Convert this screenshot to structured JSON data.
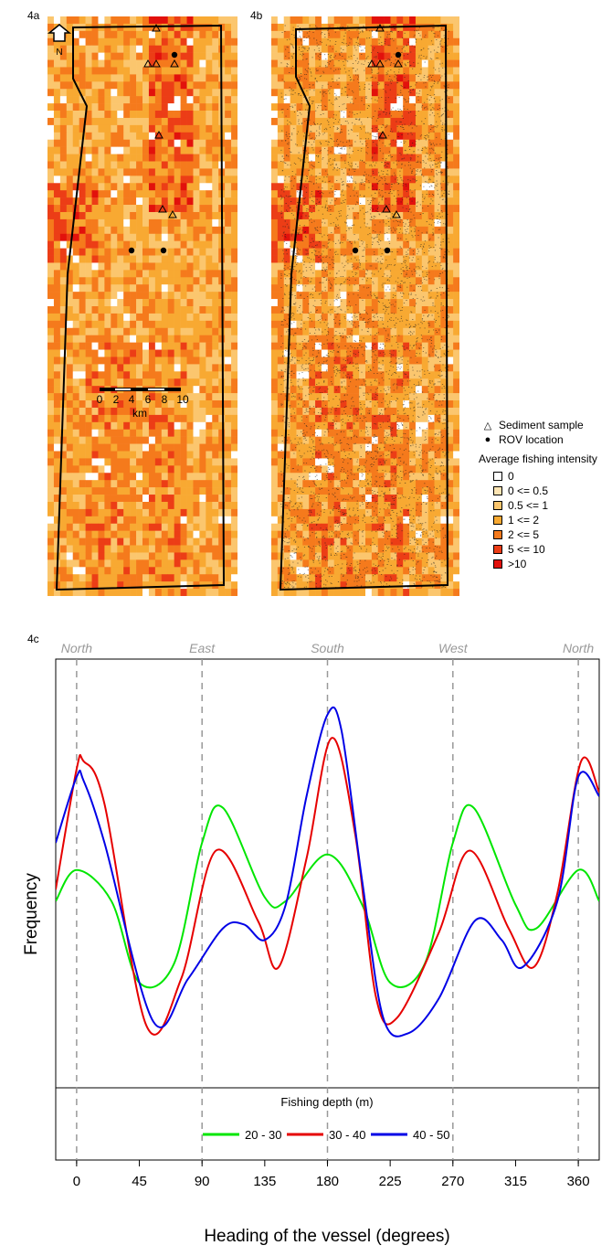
{
  "panels": {
    "a": {
      "label": "4a"
    },
    "b": {
      "label": "4b"
    },
    "c": {
      "label": "4c"
    }
  },
  "map": {
    "north_label": "N",
    "scale_ticks": [
      "0",
      "2",
      "4",
      "6",
      "8",
      "10"
    ],
    "scale_unit": "km",
    "colors": [
      "#ffffff",
      "#fde4b3",
      "#fbc66e",
      "#f8a932",
      "#f57a1c",
      "#ec3d16",
      "#e2110c"
    ]
  },
  "legend": {
    "sediment_label": "Sediment sample",
    "rov_label": "ROV location",
    "title": "Average fishing intensity",
    "classes": [
      {
        "label": "0",
        "color": "#ffffff"
      },
      {
        "label": "0 <= 0.5",
        "color": "#fde4b3"
      },
      {
        "label": "0.5 <= 1",
        "color": "#fbc66e"
      },
      {
        "label": "1 <= 2",
        "color": "#f8a932"
      },
      {
        "label": "2 <= 5",
        "color": "#f57a1c"
      },
      {
        "label": "5 <= 10",
        "color": "#ec3d16"
      },
      {
        "label": ">10",
        "color": "#e2110c"
      }
    ]
  },
  "chart_data": {
    "type": "line",
    "xlabel": "Heading of the vessel (degrees)",
    "ylabel": "Frequency",
    "xlim": [
      -15,
      375
    ],
    "ylim": [
      0,
      100
    ],
    "xticks": [
      0,
      45,
      90,
      135,
      180,
      225,
      270,
      315,
      360
    ],
    "directions": [
      {
        "label": "North",
        "x": 0
      },
      {
        "label": "East",
        "x": 90
      },
      {
        "label": "South",
        "x": 180
      },
      {
        "label": "West",
        "x": 270
      },
      {
        "label": "North",
        "x": 360
      }
    ],
    "legend_title": "Fishing depth (m)",
    "series": [
      {
        "name": "20 - 30",
        "color": "#00e600",
        "x": [
          -15,
          0,
          25,
          45,
          70,
          90,
          105,
          135,
          150,
          180,
          205,
          225,
          250,
          270,
          285,
          315,
          330,
          360,
          375
        ],
        "y": [
          45,
          53,
          45,
          24,
          29,
          60,
          69,
          46,
          45,
          57,
          44,
          24,
          29,
          60,
          69,
          44,
          38,
          53,
          45
        ]
      },
      {
        "name": "30 - 40",
        "color": "#e60000",
        "x": [
          -15,
          0,
          5,
          20,
          50,
          75,
          100,
          130,
          145,
          165,
          183,
          200,
          215,
          230,
          260,
          282,
          310,
          328,
          345,
          362,
          375
        ],
        "y": [
          48,
          79,
          81,
          70,
          13,
          25,
          58,
          40,
          28,
          56,
          87,
          62,
          20,
          15,
          37,
          58,
          38,
          28,
          47,
          81,
          73
        ]
      },
      {
        "name": "40 - 50",
        "color": "#0000e6",
        "x": [
          -15,
          0,
          5,
          20,
          55,
          80,
          105,
          120,
          135,
          150,
          165,
          180,
          190,
          205,
          220,
          238,
          260,
          286,
          305,
          320,
          345,
          360,
          375
        ],
        "y": [
          60,
          77,
          76,
          60,
          14,
          25,
          38,
          39,
          35,
          44,
          72,
          93,
          89,
          50,
          15,
          11,
          20,
          40,
          35,
          28,
          45,
          77,
          72
        ]
      }
    ]
  }
}
